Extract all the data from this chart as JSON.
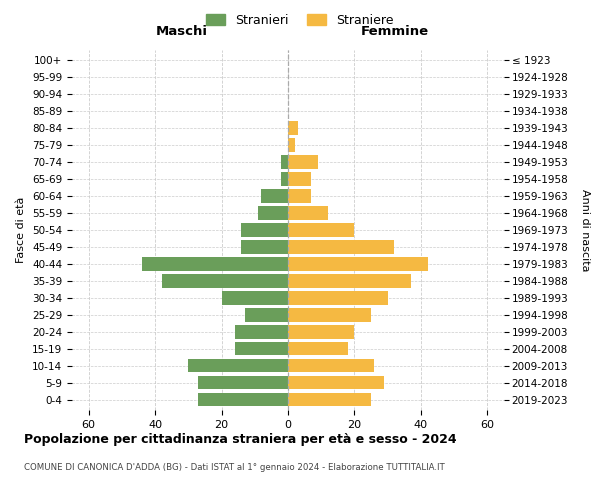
{
  "age_groups": [
    "0-4",
    "5-9",
    "10-14",
    "15-19",
    "20-24",
    "25-29",
    "30-34",
    "35-39",
    "40-44",
    "45-49",
    "50-54",
    "55-59",
    "60-64",
    "65-69",
    "70-74",
    "75-79",
    "80-84",
    "85-89",
    "90-94",
    "95-99",
    "100+"
  ],
  "birth_years": [
    "2019-2023",
    "2014-2018",
    "2009-2013",
    "2004-2008",
    "1999-2003",
    "1994-1998",
    "1989-1993",
    "1984-1988",
    "1979-1983",
    "1974-1978",
    "1969-1973",
    "1964-1968",
    "1959-1963",
    "1954-1958",
    "1949-1953",
    "1944-1948",
    "1939-1943",
    "1934-1938",
    "1929-1933",
    "1924-1928",
    "≤ 1923"
  ],
  "males": [
    27,
    27,
    30,
    16,
    16,
    13,
    20,
    38,
    44,
    14,
    14,
    9,
    8,
    2,
    2,
    0,
    0,
    0,
    0,
    0,
    0
  ],
  "females": [
    25,
    29,
    26,
    18,
    20,
    25,
    30,
    37,
    42,
    32,
    20,
    12,
    7,
    7,
    9,
    2,
    3,
    0,
    0,
    0,
    0
  ],
  "male_color": "#6a9e5a",
  "female_color": "#f5b942",
  "background_color": "#ffffff",
  "grid_color": "#cccccc",
  "title": "Popolazione per cittadinanza straniera per età e sesso - 2024",
  "subtitle": "COMUNE DI CANONICA D'ADDA (BG) - Dati ISTAT al 1° gennaio 2024 - Elaborazione TUTTITALIA.IT",
  "xlabel_left": "Maschi",
  "xlabel_right": "Femmine",
  "ylabel_left": "Fasce di età",
  "ylabel_right": "Anni di nascita",
  "legend_males": "Stranieri",
  "legend_females": "Straniere",
  "xlim": 65,
  "bar_height": 0.78
}
